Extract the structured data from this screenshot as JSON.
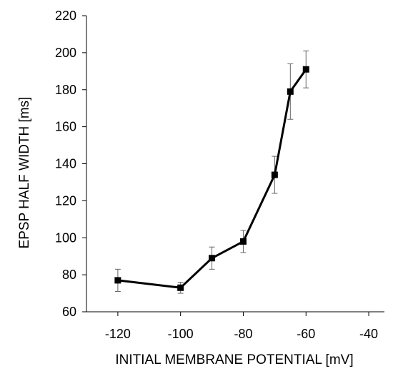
{
  "chart_data": {
    "type": "line",
    "xlabel": "INITIAL MEMBRANE POTENTIAL [mV]",
    "ylabel": "EPSP HALF WIDTH [ms]",
    "xlim": [
      -130,
      -35
    ],
    "ylim": [
      60,
      220
    ],
    "xticks": [
      -120,
      -100,
      -80,
      -60,
      -40
    ],
    "yticks": [
      60,
      80,
      100,
      120,
      140,
      160,
      180,
      200,
      220
    ],
    "grid": false,
    "marker": "square",
    "line_color": "#000000",
    "series": [
      {
        "x": [
          -120,
          -100,
          -90,
          -80,
          -70,
          -65,
          -60
        ],
        "y": [
          77,
          73,
          89,
          98,
          134,
          179,
          191
        ],
        "error": [
          6,
          3,
          6,
          6,
          10,
          15,
          10
        ]
      }
    ]
  }
}
